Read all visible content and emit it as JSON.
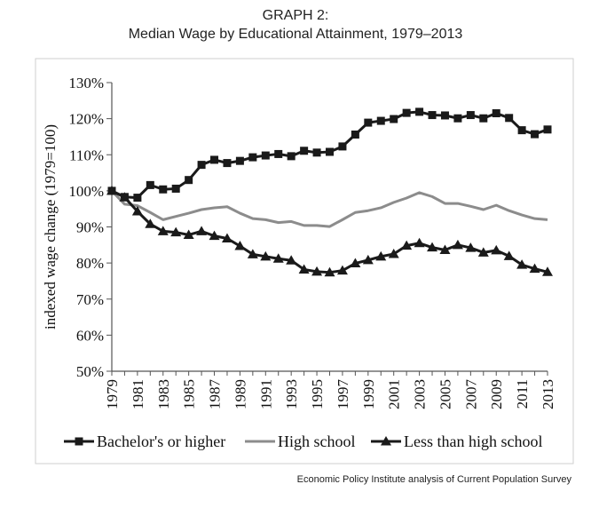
{
  "header": {
    "label": "GRAPH 2:",
    "title": "Median Wage by Educational Attainment, 1979–2013"
  },
  "source": "Economic Policy Institute analysis of Current Population Survey",
  "chart_data": {
    "type": "line",
    "ylabel": "indexed wage change (1979=100)",
    "xlabel": "",
    "ylim": [
      50,
      130
    ],
    "yticks": [
      50,
      60,
      70,
      80,
      90,
      100,
      110,
      120,
      130
    ],
    "ytick_labels": [
      "50%",
      "60%",
      "70%",
      "80%",
      "90%",
      "100%",
      "110%",
      "120%",
      "130%"
    ],
    "x": [
      1979,
      1980,
      1981,
      1982,
      1983,
      1984,
      1985,
      1986,
      1987,
      1988,
      1989,
      1990,
      1991,
      1992,
      1993,
      1994,
      1995,
      1996,
      1997,
      1998,
      1999,
      2000,
      2001,
      2002,
      2003,
      2004,
      2005,
      2006,
      2007,
      2008,
      2009,
      2010,
      2011,
      2012,
      2013
    ],
    "xtick_labels": [
      "1979",
      "1981",
      "1983",
      "1985",
      "1987",
      "1989",
      "1991",
      "1993",
      "1995",
      "1997",
      "1999",
      "2001",
      "2003",
      "2005",
      "2007",
      "2009",
      "2011",
      "2013"
    ],
    "grid": false,
    "legend_position": "bottom",
    "series": [
      {
        "name": "Bachelor's or higher",
        "marker": "square",
        "color": "#1a1a1a",
        "values": [
          100,
          98.3,
          98.1,
          101.6,
          100.4,
          100.6,
          103,
          107.2,
          108.6,
          107.7,
          108.3,
          109.3,
          109.8,
          110.2,
          109.6,
          111.1,
          110.6,
          110.8,
          112.3,
          115.6,
          118.9,
          119.4,
          119.9,
          121.6,
          121.9,
          121,
          120.9,
          120.1,
          121,
          120.1,
          121.5,
          120.2,
          116.8,
          115.7,
          117
        ]
      },
      {
        "name": "High school",
        "marker": "none",
        "color": "#8c8c8c",
        "values": [
          100,
          96.3,
          95.9,
          94,
          92,
          92.9,
          93.8,
          94.8,
          95.3,
          95.6,
          93.8,
          92.3,
          92,
          91.2,
          91.5,
          90.4,
          90.4,
          90.1,
          92,
          94,
          94.5,
          95.3,
          96.8,
          98,
          99.5,
          98.4,
          96.5,
          96.5,
          95.7,
          94.8,
          96,
          94.5,
          93.3,
          92.3,
          92
        ]
      },
      {
        "name": "Less than high school",
        "marker": "triangle",
        "color": "#1a1a1a",
        "values": [
          100,
          98.2,
          94.3,
          90.8,
          88.8,
          88.5,
          87.8,
          88.8,
          87.5,
          86.8,
          84.7,
          82.4,
          81.8,
          81.2,
          80.7,
          78.2,
          77.6,
          77.4,
          77.9,
          79.9,
          80.8,
          81.8,
          82.5,
          84.8,
          85.5,
          84.3,
          83.6,
          85,
          84.2,
          82.9,
          83.5,
          81.9,
          79.5,
          78.4,
          77.5
        ]
      }
    ]
  }
}
